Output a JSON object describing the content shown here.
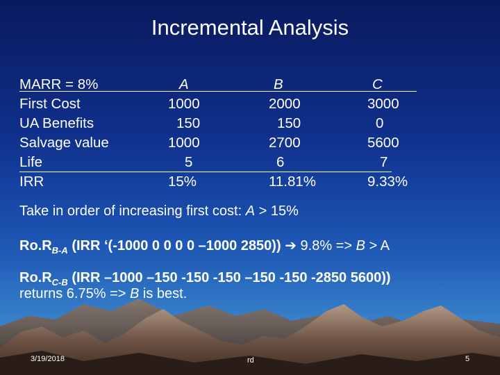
{
  "title": "Incremental Analysis",
  "table": {
    "row_labels": [
      "MARR = 8%",
      "First Cost",
      "UA Benefits",
      "Salvage value",
      "Life",
      "IRR"
    ],
    "alternatives": [
      {
        "name": "A",
        "first_cost": "1000",
        "ua_benefits": "150",
        "salvage_value": "1000",
        "life": "5",
        "irr": "15%"
      },
      {
        "name": "B",
        "first_cost": "2000",
        "ua_benefits": "150",
        "salvage_value": "2700",
        "life": "6",
        "irr": "11.81%"
      },
      {
        "name": "C",
        "first_cost": "3000",
        "ua_benefits": "0",
        "salvage_value": "5600",
        "life": "7",
        "irr": "9.33%"
      }
    ]
  },
  "text": {
    "line1_prefix": "Take in order of increasing first cost: ",
    "line1_alt": "A",
    "line1_suffix": " > 15%",
    "line2_ror": "Ro.R",
    "line2_sub": "B-A",
    "line2_formula": " (IRR ‘(-1000 0 0 0 0 –1000 2850))",
    "line2_arrow": "➔",
    "line2_result_a": " 9.8% => ",
    "line2_b": "B",
    "line2_result_b": " > A",
    "line3_ror": "Ro.R",
    "line3_sub": "C-B",
    "line3_formula": " (IRR –1000 –150 -150 -150 –150 -150  -2850  5600))",
    "line4_prefix": "returns 6.75% => ",
    "line4_b": "B",
    "line4_suffix": " is best."
  },
  "footer": {
    "date": "3/19/2018",
    "author": "rd",
    "page": "5"
  }
}
